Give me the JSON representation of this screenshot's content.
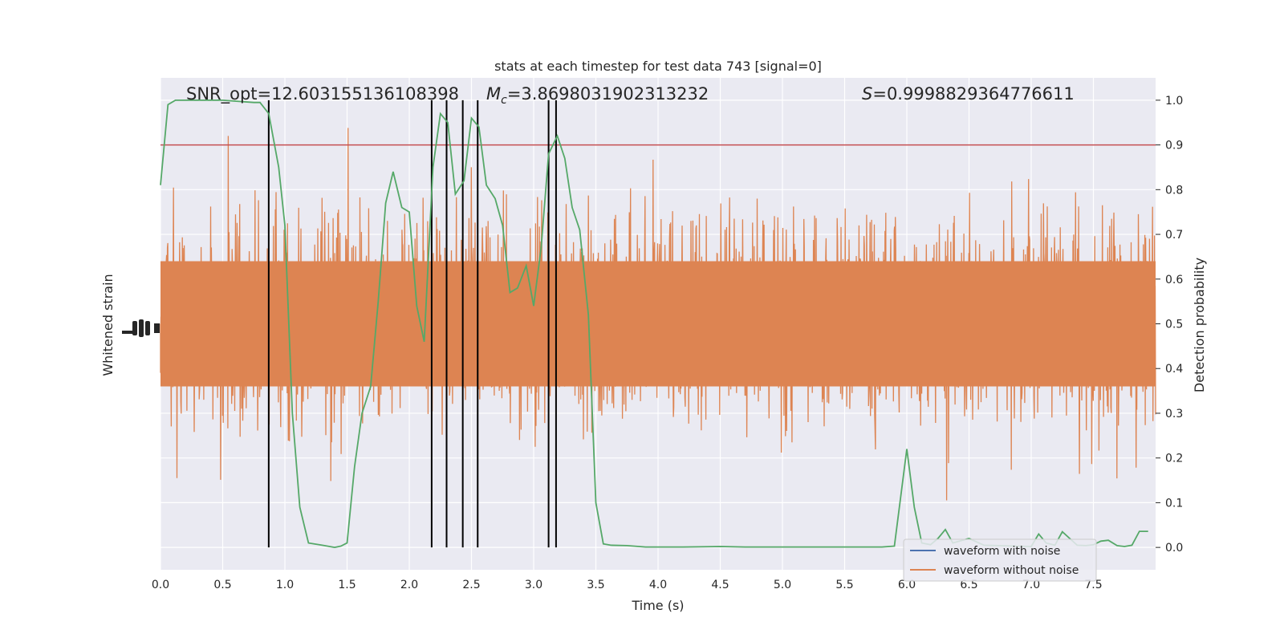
{
  "chart_data": {
    "type": "line",
    "title": "stats at each timestep for test data 743 [signal=0]",
    "xlabel": "Time (s)",
    "ylabel_left": "Whitened strain",
    "ylabel_right": "Detection probability",
    "xlim": [
      0,
      8
    ],
    "ylim_right": [
      -0.05,
      1.05
    ],
    "x_ticks": [
      "0.0",
      "0.5",
      "1.0",
      "1.5",
      "2.0",
      "2.5",
      "3.0",
      "3.5",
      "4.0",
      "4.5",
      "5.0",
      "5.5",
      "6.0",
      "6.5",
      "7.0",
      "7.5"
    ],
    "y_ticks_right": [
      "0.0",
      "0.1",
      "0.2",
      "0.3",
      "0.4",
      "0.5",
      "0.6",
      "0.7",
      "0.8",
      "0.9",
      "1.0"
    ],
    "grid": true,
    "threshold": 0.9,
    "annotations": {
      "snr": "SNR_opt=12.603155136108398",
      "mc_symbol": "M",
      "mc_sub": "c",
      "mc_value": "=3.8698031902313232",
      "s_symbol": "S",
      "s_value": "=0.9998829364776611"
    },
    "vertical_lines_x": [
      0.87,
      2.18,
      2.3,
      2.43,
      2.55,
      3.12,
      3.18
    ],
    "legend": {
      "placement": "lower-right",
      "entries": [
        {
          "label": "waveform with noise",
          "color": "#4c72b0"
        },
        {
          "label": "waveform without noise",
          "color": "#dd8452"
        }
      ]
    },
    "series": [
      {
        "label": "Detection probability",
        "color": "#55a868",
        "x": [
          0.0,
          0.06,
          0.12,
          0.25,
          0.5,
          0.75,
          0.8,
          0.87,
          0.95,
          1.0,
          1.06,
          1.12,
          1.19,
          1.3,
          1.4,
          1.45,
          1.5,
          1.56,
          1.62,
          1.69,
          1.75,
          1.81,
          1.87,
          1.94,
          2.0,
          2.06,
          2.12,
          2.19,
          2.25,
          2.31,
          2.37,
          2.44,
          2.5,
          2.56,
          2.62,
          2.69,
          2.75,
          2.81,
          2.87,
          2.94,
          3.0,
          3.06,
          3.12,
          3.19,
          3.25,
          3.31,
          3.37,
          3.44,
          3.5,
          3.56,
          3.62,
          3.75,
          3.9,
          4.2,
          4.5,
          4.7,
          5.0,
          5.5,
          5.8,
          5.9,
          6.0,
          6.06,
          6.12,
          6.19,
          6.25,
          6.31,
          6.37,
          6.5,
          6.62,
          7.0,
          7.06,
          7.12,
          7.19,
          7.25,
          7.31,
          7.37,
          7.44,
          7.5,
          7.56,
          7.62,
          7.69,
          7.75,
          7.81,
          7.87,
          7.94
        ],
        "y": [
          0.81,
          0.99,
          1.0,
          1.0,
          1.0,
          0.995,
          0.995,
          0.97,
          0.85,
          0.72,
          0.3,
          0.09,
          0.01,
          0.005,
          0.0,
          0.003,
          0.01,
          0.18,
          0.3,
          0.36,
          0.55,
          0.77,
          0.84,
          0.76,
          0.75,
          0.54,
          0.46,
          0.85,
          0.97,
          0.95,
          0.79,
          0.82,
          0.96,
          0.94,
          0.81,
          0.78,
          0.72,
          0.57,
          0.58,
          0.63,
          0.54,
          0.67,
          0.88,
          0.92,
          0.87,
          0.76,
          0.71,
          0.52,
          0.1,
          0.008,
          0.005,
          0.004,
          0.001,
          0.001,
          0.002,
          0.001,
          0.001,
          0.001,
          0.001,
          0.003,
          0.22,
          0.09,
          0.01,
          0.006,
          0.02,
          0.04,
          0.01,
          0.02,
          0.005,
          0.002,
          0.03,
          0.01,
          0.005,
          0.035,
          0.02,
          0.005,
          0.004,
          0.006,
          0.014,
          0.016,
          0.004,
          0.002,
          0.005,
          0.036,
          0.036
        ]
      }
    ]
  }
}
